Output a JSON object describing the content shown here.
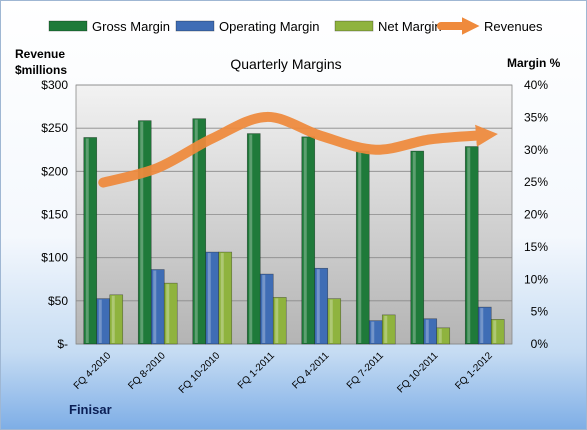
{
  "chart_data": {
    "type": "bar",
    "title": "Quarterly Margins",
    "company": "Finisar",
    "categories": [
      "FQ 4-2010",
      "FQ 8-2010",
      "FQ 10-2010",
      "FQ 1-2011",
      "FQ 4-2011",
      "FQ 7-2011",
      "FQ 10-2011",
      "FQ 1-2012"
    ],
    "y_left": {
      "label_line1": "Revenue",
      "label_line2": "$millions",
      "range": [
        0,
        300
      ],
      "ticks": [
        0,
        50,
        100,
        150,
        200,
        250,
        300
      ],
      "tick_labels": [
        "$-",
        "$50",
        "$100",
        "$150",
        "$200",
        "$250",
        "$300"
      ]
    },
    "y_right": {
      "label": "Margin %",
      "range": [
        0,
        40
      ],
      "ticks": [
        0,
        5,
        10,
        15,
        20,
        25,
        30,
        35,
        40
      ],
      "tick_labels": [
        "0%",
        "5%",
        "10%",
        "15%",
        "20%",
        "25%",
        "30%",
        "35%",
        "40%"
      ]
    },
    "grid": true,
    "legend_position": "top",
    "series": [
      {
        "name": "Gross Margin",
        "type": "bar",
        "axis": "right",
        "color": "#1f7a3a",
        "values": [
          31.9,
          34.5,
          34.8,
          32.5,
          32.0,
          29.8,
          29.8,
          30.5
        ]
      },
      {
        "name": "Operating Margin",
        "type": "bar",
        "axis": "right",
        "color": "#3f6db5",
        "values": [
          7.0,
          11.5,
          14.2,
          10.8,
          11.7,
          3.6,
          3.9,
          5.7
        ]
      },
      {
        "name": "Net Margin",
        "type": "bar",
        "axis": "right",
        "color": "#8fb33e",
        "values": [
          7.6,
          9.4,
          14.2,
          7.2,
          7.0,
          4.5,
          2.5,
          3.8
        ]
      },
      {
        "name": "Revenues",
        "type": "line",
        "axis": "left",
        "color": "#ef8a3c",
        "values": [
          187,
          204,
          238,
          263,
          241,
          225,
          237,
          242
        ]
      }
    ]
  }
}
